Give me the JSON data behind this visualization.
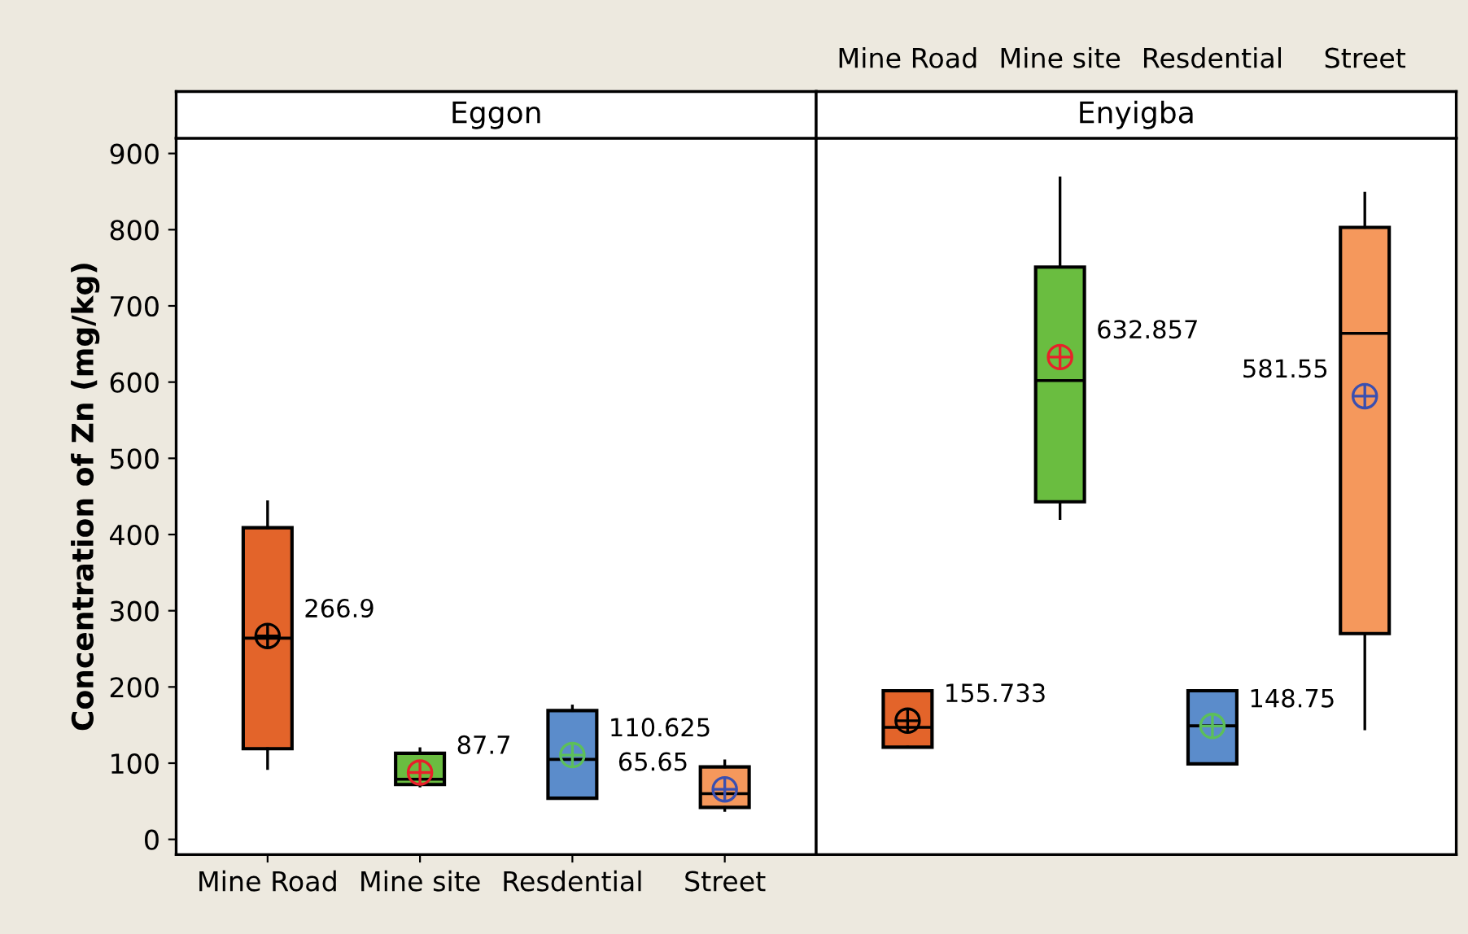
{
  "chart_data": [
    {
      "type": "box",
      "title": "Eggon",
      "ylabel": "Concentration of Zn (mg/kg)",
      "categories": [
        "Mine Road",
        "Mine site",
        "Resdential",
        "Street"
      ],
      "ylim": [
        -20,
        920
      ],
      "yticks": [
        0,
        100,
        200,
        300,
        400,
        500,
        600,
        700,
        800,
        900
      ],
      "grid": false,
      "legend": false,
      "series": [
        {
          "colors": [
            "#e3642a",
            "#6abd40",
            "#5b8ccb",
            "#f5985c"
          ],
          "boxes": [
            {
              "low": 93,
              "q1": 119,
              "median": 264,
              "q3": 409,
              "high": 443
            },
            {
              "low": 70,
              "q1": 72,
              "median": 79,
              "q3": 113,
              "high": 119
            },
            {
              "low": 54,
              "q1": 54,
              "median": 105,
              "q3": 169,
              "high": 175
            },
            {
              "low": 38,
              "q1": 42,
              "median": 60,
              "q3": 95,
              "high": 103
            }
          ]
        },
        {
          "type": "scatter",
          "marker": "cross",
          "x": [
            "Mine Road",
            "Mine site",
            "Resdential",
            "Street"
          ],
          "colors": [
            "#000000",
            "#e8202a",
            "#5cbf5a",
            "#3a4fb0"
          ],
          "values": [
            266.9,
            87.7,
            110.625,
            65.65
          ],
          "value_labels": [
            "266.9",
            "87.7",
            "110.625",
            "65.65"
          ]
        }
      ]
    },
    {
      "type": "box",
      "title": "Enyigba",
      "categories": [
        "Mine Road",
        "Mine site",
        "Resdential",
        "Street"
      ],
      "ylim": [
        -20,
        920
      ],
      "yticks": [
        0,
        100,
        200,
        300,
        400,
        500,
        600,
        700,
        800,
        900
      ],
      "grid": false,
      "legend": false,
      "tick_labels": "x",
      "series": [
        {
          "colors": [
            "#e3642a",
            "#6abd40",
            "#5b8ccb",
            "#f5985c"
          ],
          "boxes": [
            {
              "low": 121,
              "q1": 121,
              "median": 147,
              "q3": 195,
              "high": 195
            },
            {
              "low": 421,
              "q1": 443,
              "median": 602,
              "q3": 751,
              "high": 868
            },
            {
              "low": 99,
              "q1": 99,
              "median": 149,
              "q3": 195,
              "high": 195
            },
            {
              "low": 145,
              "q1": 270,
              "median": 664,
              "q3": 803,
              "high": 848
            }
          ]
        },
        {
          "type": "scatter",
          "marker": "cross",
          "x": [
            "Mine Road",
            "Mine site",
            "Resdential",
            "Street"
          ],
          "colors": [
            "#000000",
            "#e8202a",
            "#5cbf5a",
            "#3a4fb0"
          ],
          "values": [
            155.733,
            632.857,
            148.75,
            581.55
          ],
          "value_labels": [
            "155.733",
            "632.857",
            "148.75",
            "581.55"
          ]
        }
      ]
    }
  ]
}
